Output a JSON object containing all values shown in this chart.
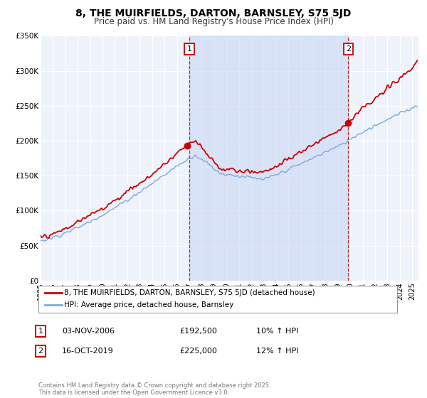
{
  "title": "8, THE MUIRFIELDS, DARTON, BARNSLEY, S75 5JD",
  "subtitle": "Price paid vs. HM Land Registry's House Price Index (HPI)",
  "background_color": "#ffffff",
  "plot_bg_color": "#eef2fb",
  "grid_color": "#ffffff",
  "shade_color": "#d0dcf5",
  "red_line_color": "#cc0000",
  "blue_line_color": "#7aaadd",
  "marker1_year": 2006.84,
  "marker1_value": 192500,
  "marker2_year": 2019.79,
  "marker2_value": 225000,
  "vline1_x": 2007.0,
  "vline2_x": 2019.83,
  "ylim_min": 0,
  "ylim_max": 350000,
  "xlim_min": 1995,
  "xlim_max": 2025.5,
  "yticks": [
    0,
    50000,
    100000,
    150000,
    200000,
    250000,
    300000,
    350000
  ],
  "ytick_labels": [
    "£0",
    "£50K",
    "£100K",
    "£150K",
    "£200K",
    "£250K",
    "£300K",
    "£350K"
  ],
  "xticks": [
    1995,
    1996,
    1997,
    1998,
    1999,
    2000,
    2001,
    2002,
    2003,
    2004,
    2005,
    2006,
    2007,
    2008,
    2009,
    2010,
    2011,
    2012,
    2013,
    2014,
    2015,
    2016,
    2017,
    2018,
    2019,
    2020,
    2021,
    2022,
    2023,
    2024,
    2025
  ],
  "legend_label_red": "8, THE MUIRFIELDS, DARTON, BARNSLEY, S75 5JD (detached house)",
  "legend_label_blue": "HPI: Average price, detached house, Barnsley",
  "table_row1": [
    "1",
    "03-NOV-2006",
    "£192,500",
    "10% ↑ HPI"
  ],
  "table_row2": [
    "2",
    "16-OCT-2019",
    "£225,000",
    "12% ↑ HPI"
  ],
  "footer": "Contains HM Land Registry data © Crown copyright and database right 2025.\nThis data is licensed under the Open Government Licence v3.0."
}
